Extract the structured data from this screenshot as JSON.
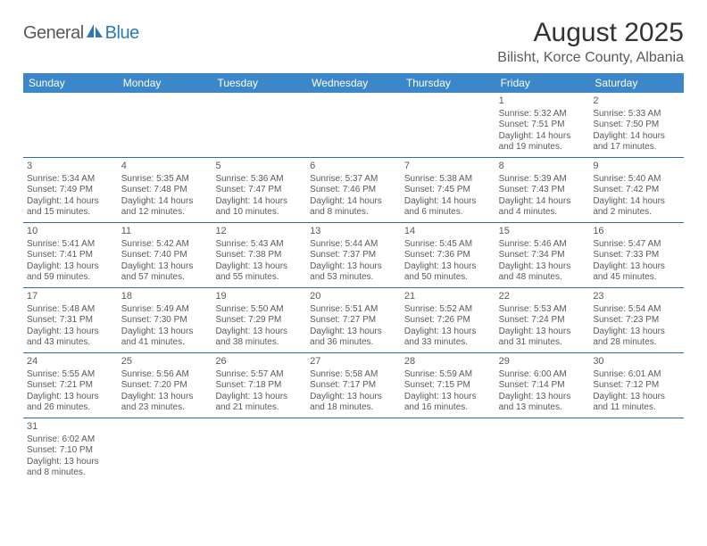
{
  "logo": {
    "text1": "General",
    "text2": "Blue"
  },
  "title": "August 2025",
  "location": "Bilisht, Korce County, Albania",
  "colors": {
    "header_bg": "#3b87c8",
    "header_text": "#ffffff",
    "row_border": "#2f6fa8",
    "body_text": "#5a5a5a",
    "logo_gray": "#5a5a5a",
    "logo_blue": "#2f78b7"
  },
  "weekdays": [
    "Sunday",
    "Monday",
    "Tuesday",
    "Wednesday",
    "Thursday",
    "Friday",
    "Saturday"
  ],
  "weeks": [
    [
      null,
      null,
      null,
      null,
      null,
      {
        "n": "1",
        "sr": "5:32 AM",
        "ss": "7:51 PM",
        "dl": "14 hours and 19 minutes."
      },
      {
        "n": "2",
        "sr": "5:33 AM",
        "ss": "7:50 PM",
        "dl": "14 hours and 17 minutes."
      }
    ],
    [
      {
        "n": "3",
        "sr": "5:34 AM",
        "ss": "7:49 PM",
        "dl": "14 hours and 15 minutes."
      },
      {
        "n": "4",
        "sr": "5:35 AM",
        "ss": "7:48 PM",
        "dl": "14 hours and 12 minutes."
      },
      {
        "n": "5",
        "sr": "5:36 AM",
        "ss": "7:47 PM",
        "dl": "14 hours and 10 minutes."
      },
      {
        "n": "6",
        "sr": "5:37 AM",
        "ss": "7:46 PM",
        "dl": "14 hours and 8 minutes."
      },
      {
        "n": "7",
        "sr": "5:38 AM",
        "ss": "7:45 PM",
        "dl": "14 hours and 6 minutes."
      },
      {
        "n": "8",
        "sr": "5:39 AM",
        "ss": "7:43 PM",
        "dl": "14 hours and 4 minutes."
      },
      {
        "n": "9",
        "sr": "5:40 AM",
        "ss": "7:42 PM",
        "dl": "14 hours and 2 minutes."
      }
    ],
    [
      {
        "n": "10",
        "sr": "5:41 AM",
        "ss": "7:41 PM",
        "dl": "13 hours and 59 minutes."
      },
      {
        "n": "11",
        "sr": "5:42 AM",
        "ss": "7:40 PM",
        "dl": "13 hours and 57 minutes."
      },
      {
        "n": "12",
        "sr": "5:43 AM",
        "ss": "7:38 PM",
        "dl": "13 hours and 55 minutes."
      },
      {
        "n": "13",
        "sr": "5:44 AM",
        "ss": "7:37 PM",
        "dl": "13 hours and 53 minutes."
      },
      {
        "n": "14",
        "sr": "5:45 AM",
        "ss": "7:36 PM",
        "dl": "13 hours and 50 minutes."
      },
      {
        "n": "15",
        "sr": "5:46 AM",
        "ss": "7:34 PM",
        "dl": "13 hours and 48 minutes."
      },
      {
        "n": "16",
        "sr": "5:47 AM",
        "ss": "7:33 PM",
        "dl": "13 hours and 45 minutes."
      }
    ],
    [
      {
        "n": "17",
        "sr": "5:48 AM",
        "ss": "7:31 PM",
        "dl": "13 hours and 43 minutes."
      },
      {
        "n": "18",
        "sr": "5:49 AM",
        "ss": "7:30 PM",
        "dl": "13 hours and 41 minutes."
      },
      {
        "n": "19",
        "sr": "5:50 AM",
        "ss": "7:29 PM",
        "dl": "13 hours and 38 minutes."
      },
      {
        "n": "20",
        "sr": "5:51 AM",
        "ss": "7:27 PM",
        "dl": "13 hours and 36 minutes."
      },
      {
        "n": "21",
        "sr": "5:52 AM",
        "ss": "7:26 PM",
        "dl": "13 hours and 33 minutes."
      },
      {
        "n": "22",
        "sr": "5:53 AM",
        "ss": "7:24 PM",
        "dl": "13 hours and 31 minutes."
      },
      {
        "n": "23",
        "sr": "5:54 AM",
        "ss": "7:23 PM",
        "dl": "13 hours and 28 minutes."
      }
    ],
    [
      {
        "n": "24",
        "sr": "5:55 AM",
        "ss": "7:21 PM",
        "dl": "13 hours and 26 minutes."
      },
      {
        "n": "25",
        "sr": "5:56 AM",
        "ss": "7:20 PM",
        "dl": "13 hours and 23 minutes."
      },
      {
        "n": "26",
        "sr": "5:57 AM",
        "ss": "7:18 PM",
        "dl": "13 hours and 21 minutes."
      },
      {
        "n": "27",
        "sr": "5:58 AM",
        "ss": "7:17 PM",
        "dl": "13 hours and 18 minutes."
      },
      {
        "n": "28",
        "sr": "5:59 AM",
        "ss": "7:15 PM",
        "dl": "13 hours and 16 minutes."
      },
      {
        "n": "29",
        "sr": "6:00 AM",
        "ss": "7:14 PM",
        "dl": "13 hours and 13 minutes."
      },
      {
        "n": "30",
        "sr": "6:01 AM",
        "ss": "7:12 PM",
        "dl": "13 hours and 11 minutes."
      }
    ],
    [
      {
        "n": "31",
        "sr": "6:02 AM",
        "ss": "7:10 PM",
        "dl": "13 hours and 8 minutes."
      },
      null,
      null,
      null,
      null,
      null,
      null
    ]
  ],
  "labels": {
    "sunrise": "Sunrise:",
    "sunset": "Sunset:",
    "daylight": "Daylight:"
  }
}
